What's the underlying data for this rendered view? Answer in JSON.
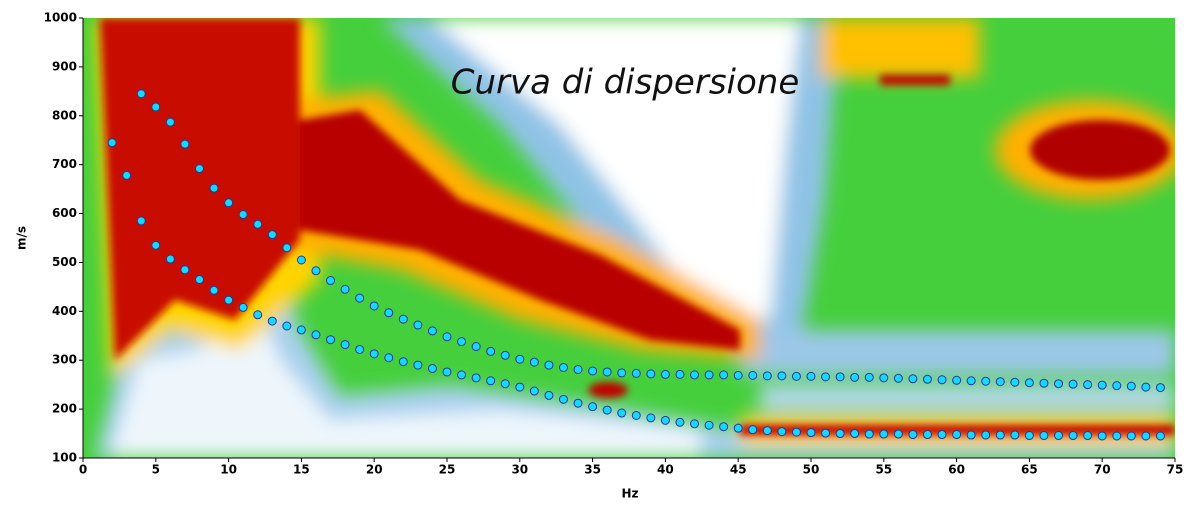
{
  "chart_data": {
    "type": "scatter",
    "title": "Curva di dispersione",
    "x_label": "Hz",
    "y_label": "m/s",
    "xlim": [
      0,
      75
    ],
    "xticks": [
      0,
      5,
      10,
      15,
      20,
      25,
      30,
      35,
      40,
      45,
      50,
      55,
      60,
      65,
      70,
      75
    ],
    "ylim": [
      100,
      1000
    ],
    "yticks": [
      100,
      200,
      300,
      400,
      500,
      600,
      700,
      800,
      900,
      1000
    ],
    "grid": false,
    "series": [
      {
        "color": "#1ad7ff",
        "x": [
          4,
          5,
          6,
          7,
          8,
          9,
          10,
          11,
          12,
          13,
          14,
          15,
          16,
          17,
          18,
          19,
          20,
          21,
          22,
          23,
          24,
          25,
          26,
          27,
          28,
          29,
          30,
          31,
          32,
          33,
          34,
          35,
          36,
          37,
          38,
          39,
          40,
          41,
          42,
          43,
          44,
          45,
          46,
          47,
          48,
          49,
          50,
          51,
          52,
          53,
          54,
          55,
          56,
          57,
          58,
          59,
          60,
          61,
          62,
          63,
          64,
          65,
          66,
          67,
          68,
          69,
          70,
          71,
          72,
          73,
          74
        ],
        "values": [
          845,
          818,
          787,
          742,
          692,
          652,
          622,
          598,
          578,
          557,
          530,
          505,
          483,
          463,
          445,
          427,
          411,
          397,
          384,
          372,
          360,
          348,
          338,
          328,
          318,
          310,
          302,
          296,
          290,
          285,
          281,
          278,
          276,
          274,
          273,
          272,
          271,
          271,
          270,
          270,
          270,
          269,
          269,
          268,
          268,
          267,
          267,
          266,
          266,
          265,
          265,
          264,
          263,
          262,
          261,
          260,
          259,
          258,
          257,
          256,
          255,
          254,
          253,
          252,
          251,
          250,
          249,
          248,
          247,
          245,
          244
        ]
      },
      {
        "color": "#1ad7ff",
        "x": [
          2,
          3,
          4,
          5,
          6,
          7,
          8,
          9,
          10,
          11,
          12,
          13,
          14,
          15,
          16,
          17,
          18,
          19,
          20,
          21,
          22,
          23,
          24,
          25,
          26,
          27,
          28,
          29,
          30,
          31,
          32,
          33,
          34,
          35,
          36,
          37,
          38,
          39,
          40,
          41,
          42,
          43,
          44,
          45,
          46,
          47,
          48,
          49,
          50,
          51,
          52,
          53,
          54,
          55,
          56,
          57,
          58,
          59,
          60,
          61,
          62,
          63,
          64,
          65,
          66,
          67,
          68,
          69,
          70,
          71,
          72,
          73,
          74
        ],
        "values": [
          745,
          678,
          585,
          535,
          507,
          485,
          465,
          443,
          423,
          408,
          393,
          380,
          370,
          362,
          352,
          342,
          332,
          322,
          313,
          305,
          297,
          290,
          283,
          276,
          270,
          264,
          258,
          252,
          245,
          237,
          228,
          220,
          212,
          205,
          198,
          192,
          187,
          182,
          177,
          173,
          170,
          167,
          164,
          161,
          158,
          156,
          154,
          153,
          152,
          151,
          150,
          150,
          149,
          149,
          149,
          148,
          148,
          148,
          148,
          147,
          147,
          147,
          147,
          146,
          146,
          146,
          146,
          146,
          145,
          145,
          145,
          145,
          145
        ]
      }
    ]
  }
}
